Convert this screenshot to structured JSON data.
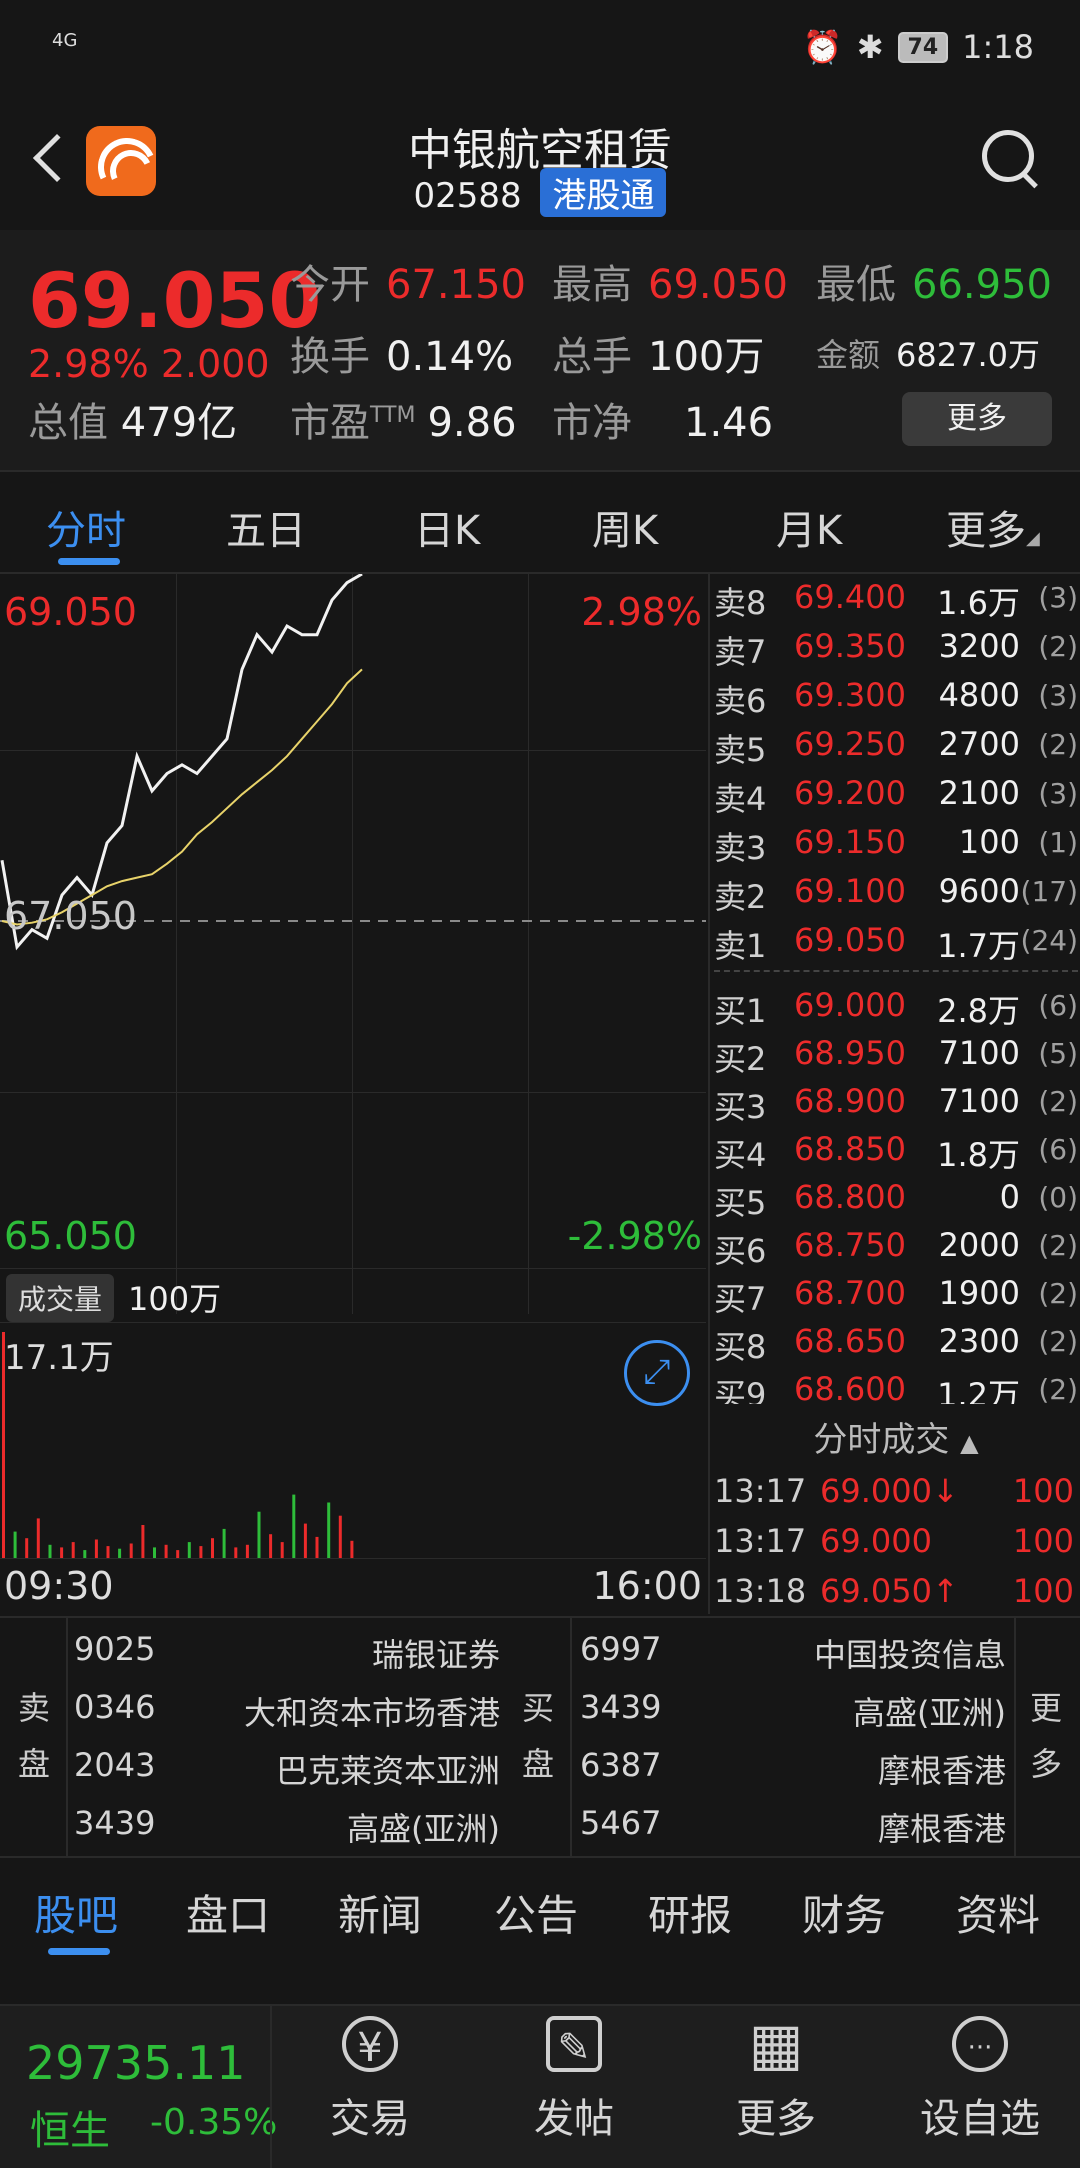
{
  "status_bar": {
    "signal": "4G",
    "time": "1:18",
    "battery": "74"
  },
  "header": {
    "name": "中银航空租赁",
    "code": "02588",
    "badge": "港股通"
  },
  "quote": {
    "price": "69.050",
    "change_pct": "2.98%",
    "change_abs": "2.000",
    "market_value_label": "总值",
    "market_value": "479亿",
    "open_label": "今开",
    "open": "67.150",
    "high_label": "最高",
    "high": "69.050",
    "low_label": "最低",
    "low": "66.950",
    "turnover_label": "换手",
    "turnover": "0.14%",
    "volume_label": "总手",
    "volume": "100万",
    "amount_label": "金额",
    "amount": "6827.0万",
    "pe_label": "市盈",
    "pe_sup": "TTM",
    "pe": "9.86",
    "pb_label": "市净",
    "pb": "1.46",
    "more": "更多"
  },
  "chart_tabs": [
    "分时",
    "五日",
    "日K",
    "周K",
    "月K",
    "更多"
  ],
  "chart": {
    "upper_price": "69.050",
    "upper_pct": "2.98%",
    "mid_price": "67.050",
    "lower_price": "65.050",
    "lower_pct": "-2.98%",
    "volume_tag": "成交量",
    "volume_value": "100万",
    "volume_max": "17.1万",
    "time_start": "09:30",
    "time_end": "16:00"
  },
  "chart_data": {
    "type": "line",
    "ylim": [
      65.05,
      69.05
    ],
    "series": [
      {
        "values": [
          67.4,
          66.9,
          67.0,
          66.95,
          67.2,
          67.3,
          67.2,
          67.5,
          67.6,
          68.0,
          67.8,
          67.9,
          67.95,
          67.9,
          68.0,
          68.1,
          68.5,
          68.7,
          68.6,
          68.75,
          68.7,
          68.7,
          68.9,
          69.0,
          69.05
        ]
      },
      {
        "values": [
          67.05,
          67.03,
          67.04,
          67.06,
          67.1,
          67.15,
          67.2,
          67.25,
          67.28,
          67.3,
          67.32,
          67.38,
          67.45,
          67.55,
          67.62,
          67.7,
          67.78,
          67.85,
          67.92,
          68.0,
          68.1,
          68.2,
          68.3,
          68.42,
          68.5
        ]
      }
    ],
    "volume_bars": [
      17.1,
      2,
      1.5,
      3,
      1,
      0.8,
      1.2,
      0.6,
      1.4,
      0.9,
      0.7,
      1.1,
      2.5,
      0.8,
      1,
      0.6,
      1.2,
      0.9,
      1.5,
      2.2,
      0.8,
      1,
      3.5,
      1.8,
      1.2,
      4.8,
      2.6,
      1.6,
      4.2,
      3.2,
      1.3
    ]
  },
  "order_book": {
    "asks": [
      {
        "label": "卖8",
        "price": "69.400",
        "vol": "1.6万",
        "cnt": "(3)"
      },
      {
        "label": "卖7",
        "price": "69.350",
        "vol": "3200",
        "cnt": "(2)"
      },
      {
        "label": "卖6",
        "price": "69.300",
        "vol": "4800",
        "cnt": "(3)"
      },
      {
        "label": "卖5",
        "price": "69.250",
        "vol": "2700",
        "cnt": "(2)"
      },
      {
        "label": "卖4",
        "price": "69.200",
        "vol": "2100",
        "cnt": "(3)"
      },
      {
        "label": "卖3",
        "price": "69.150",
        "vol": "100",
        "cnt": "(1)"
      },
      {
        "label": "卖2",
        "price": "69.100",
        "vol": "9600",
        "cnt": "(17)"
      },
      {
        "label": "卖1",
        "price": "69.050",
        "vol": "1.7万",
        "cnt": "(24)"
      }
    ],
    "bids": [
      {
        "label": "买1",
        "price": "69.000",
        "vol": "2.8万",
        "cnt": "(6)"
      },
      {
        "label": "买2",
        "price": "68.950",
        "vol": "7100",
        "cnt": "(5)"
      },
      {
        "label": "买3",
        "price": "68.900",
        "vol": "7100",
        "cnt": "(2)"
      },
      {
        "label": "买4",
        "price": "68.850",
        "vol": "1.8万",
        "cnt": "(6)"
      },
      {
        "label": "买5",
        "price": "68.800",
        "vol": "0",
        "cnt": "(0)"
      },
      {
        "label": "买6",
        "price": "68.750",
        "vol": "2000",
        "cnt": "(2)"
      },
      {
        "label": "买7",
        "price": "68.700",
        "vol": "1900",
        "cnt": "(2)"
      },
      {
        "label": "买8",
        "price": "68.650",
        "vol": "2300",
        "cnt": "(2)"
      },
      {
        "label": "买9",
        "price": "68.600",
        "vol": "1.2万",
        "cnt": "(2)"
      }
    ]
  },
  "ticks": {
    "title": "分时成交",
    "rows": [
      {
        "time": "13:17",
        "price": "69.000↓",
        "vol": "100"
      },
      {
        "time": "13:17",
        "price": "69.000",
        "vol": "100"
      },
      {
        "time": "13:18",
        "price": "69.050↑",
        "vol": "100"
      }
    ]
  },
  "brokers": {
    "sell_label": "卖盘",
    "buy_label": "买盘",
    "more_label": "更多",
    "sell": [
      {
        "id": "9025",
        "name": "瑞银证券"
      },
      {
        "id": "0346",
        "name": "大和资本市场香港"
      },
      {
        "id": "2043",
        "name": "巴克莱资本亚洲"
      },
      {
        "id": "3439",
        "name": "高盛(亚洲)"
      }
    ],
    "buy": [
      {
        "id": "6997",
        "name": "中国投资信息"
      },
      {
        "id": "3439",
        "name": "高盛(亚洲)"
      },
      {
        "id": "6387",
        "name": "摩根香港"
      },
      {
        "id": "5467",
        "name": "摩根香港"
      }
    ]
  },
  "info_tabs": [
    "股吧",
    "盘口",
    "新闻",
    "公告",
    "研报",
    "财务",
    "资料"
  ],
  "bottom_bar": {
    "index_value": "29735.11",
    "index_name": "恒生",
    "index_change": "-0.35%",
    "buttons": [
      {
        "label": "交易",
        "icon": "yen-circle-icon",
        "glyph": "¥"
      },
      {
        "label": "发帖",
        "icon": "pencil-icon",
        "glyph": "✎"
      },
      {
        "label": "更多",
        "icon": "grid-icon",
        "glyph": "▦"
      },
      {
        "label": "设自选",
        "icon": "ellipsis-circle-icon",
        "glyph": "···"
      }
    ]
  }
}
